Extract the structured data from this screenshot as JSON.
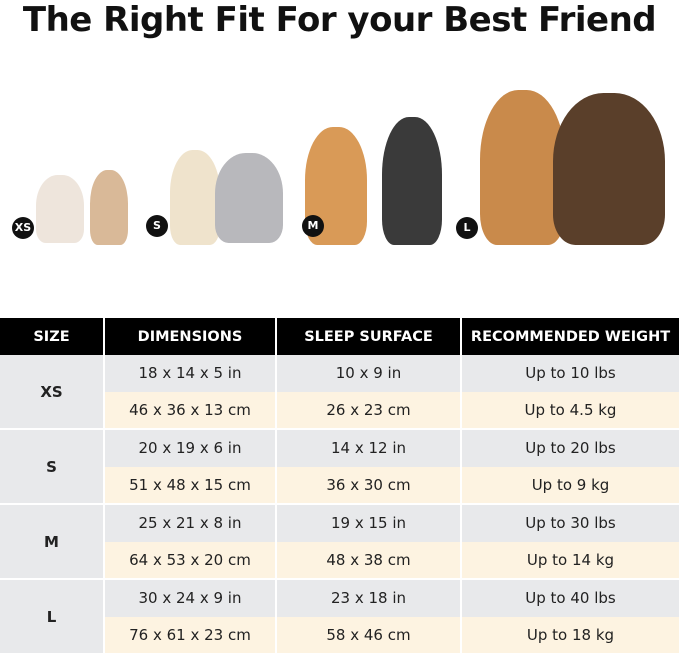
{
  "title": "The Right Fit For your Best Friend",
  "sizes_badges": [
    "XS",
    "S",
    "M",
    "L"
  ],
  "colors": {
    "header_bg": "#000000",
    "row_in": "#e8e9eb",
    "row_cm": "#fdf3e1"
  },
  "table": {
    "headers": [
      "SIZE",
      "DIMENSIONS",
      "SLEEP SURFACE",
      "RECOMMENDED WEIGHT"
    ],
    "rows": [
      {
        "size": "XS",
        "in": [
          "18 x 14 x 5 in",
          "10 x 9 in",
          "Up to 10 lbs"
        ],
        "cm": [
          "46 x 36 x 13 cm",
          "26 x 23 cm",
          "Up to 4.5 kg"
        ]
      },
      {
        "size": "S",
        "in": [
          "20 x 19 x 6 in",
          "14 x 12 in",
          "Up to 20 lbs"
        ],
        "cm": [
          "51 x 48 x 15 cm",
          "36 x 30 cm",
          "Up to 9 kg"
        ]
      },
      {
        "size": "M",
        "in": [
          "25 x 21 x 8 in",
          "19 x 15 in",
          "Up to 30 lbs"
        ],
        "cm": [
          "64 x 53 x 20 cm",
          "48 x 38 cm",
          "Up to 14 kg"
        ]
      },
      {
        "size": "L",
        "in": [
          "30 x 24 x 9 in",
          "23 x 18 in",
          "Up to 40 lbs"
        ],
        "cm": [
          "76 x 61 x 23 cm",
          "58 x 46 cm",
          "Up to 18 kg"
        ]
      }
    ]
  }
}
